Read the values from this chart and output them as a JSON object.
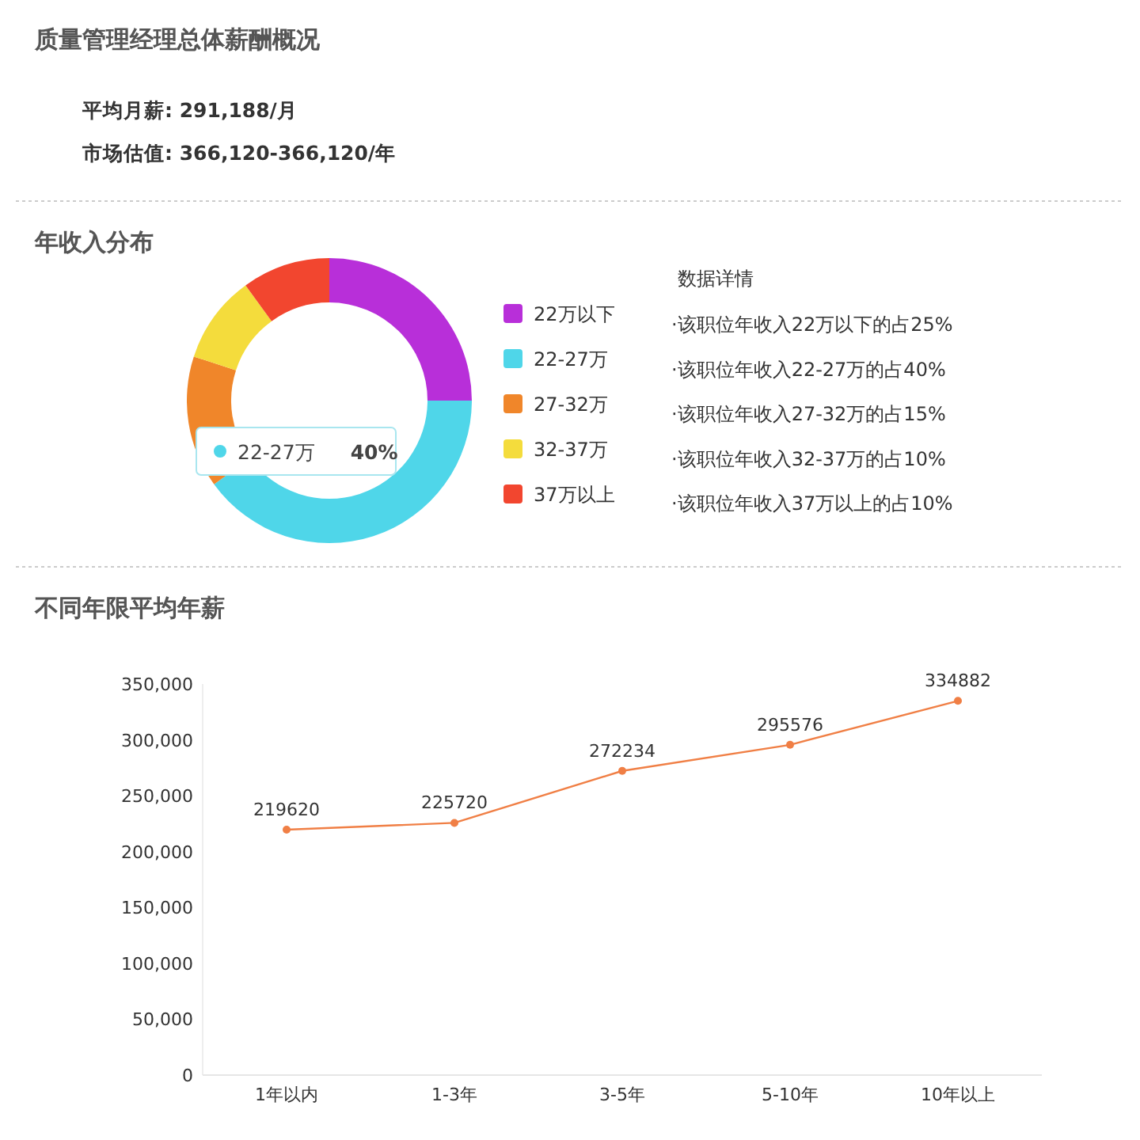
{
  "chart_data": [
    {
      "type": "other",
      "title": "质量管理经理总体薪酬概况",
      "annotations": [
        "平均月薪: 291,188/月",
        "市场估值: 366,120-366,120/年"
      ]
    },
    {
      "type": "donut",
      "title": "年收入分布",
      "categories": [
        "22万以下",
        "22-27万",
        "27-32万",
        "32-37万",
        "37万以上"
      ],
      "values": [
        25,
        40,
        15,
        10,
        10
      ],
      "colors": [
        "#b82fd9",
        "#4fd6e9",
        "#f0862a",
        "#f4dc3c",
        "#f2462f"
      ],
      "legend": "right",
      "annotations": [
        "22-27万 40%",
        "数据详情",
        "·该职位年收入22万以下的占25%",
        "·该职位年收入22-27万的占40%",
        "·该职位年收入27-32万的占15%",
        "·该职位年收入32-37万的占10%",
        "·该职位年收入37万以上的占10%"
      ]
    },
    {
      "type": "line",
      "title": "不同年限平均年薪",
      "categories": [
        "1年以内",
        "1-3年",
        "3-5年",
        "5-10年",
        "10年以上"
      ],
      "values": [
        219620,
        225720,
        272234,
        295576,
        334882
      ],
      "color": "#f07f45",
      "marker": "circle",
      "data_labels": true,
      "ylim": [
        0,
        350000
      ],
      "yticks": [
        {
          "value": 0,
          "label": "0"
        },
        {
          "value": 50000,
          "label": "50,000"
        },
        {
          "value": 100000,
          "label": "100,000"
        },
        {
          "value": 150000,
          "label": "150,000"
        },
        {
          "value": 200000,
          "label": "200,000"
        },
        {
          "value": 250000,
          "label": "250,000"
        },
        {
          "value": 300000,
          "label": "300,000"
        },
        {
          "value": 350000,
          "label": "350,000"
        }
      ]
    }
  ]
}
